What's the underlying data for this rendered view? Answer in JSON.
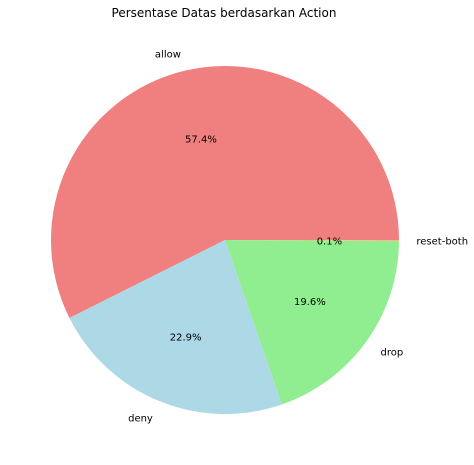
{
  "chart_data": {
    "type": "pie",
    "title": "Persentase Datas berdasarkan Action",
    "slices": [
      {
        "label": "allow",
        "value": 57.4,
        "pct_label": "57.4%",
        "color": "#f08080"
      },
      {
        "label": "deny",
        "value": 22.9,
        "pct_label": "22.9%",
        "color": "#add8e6"
      },
      {
        "label": "drop",
        "value": 19.6,
        "pct_label": "19.6%",
        "color": "#90ee90"
      },
      {
        "label": "reset-both",
        "value": 0.1,
        "pct_label": "0.1%",
        "color": "#f0c080"
      }
    ],
    "start_angle_deg": 0,
    "direction": "counterclockwise"
  }
}
